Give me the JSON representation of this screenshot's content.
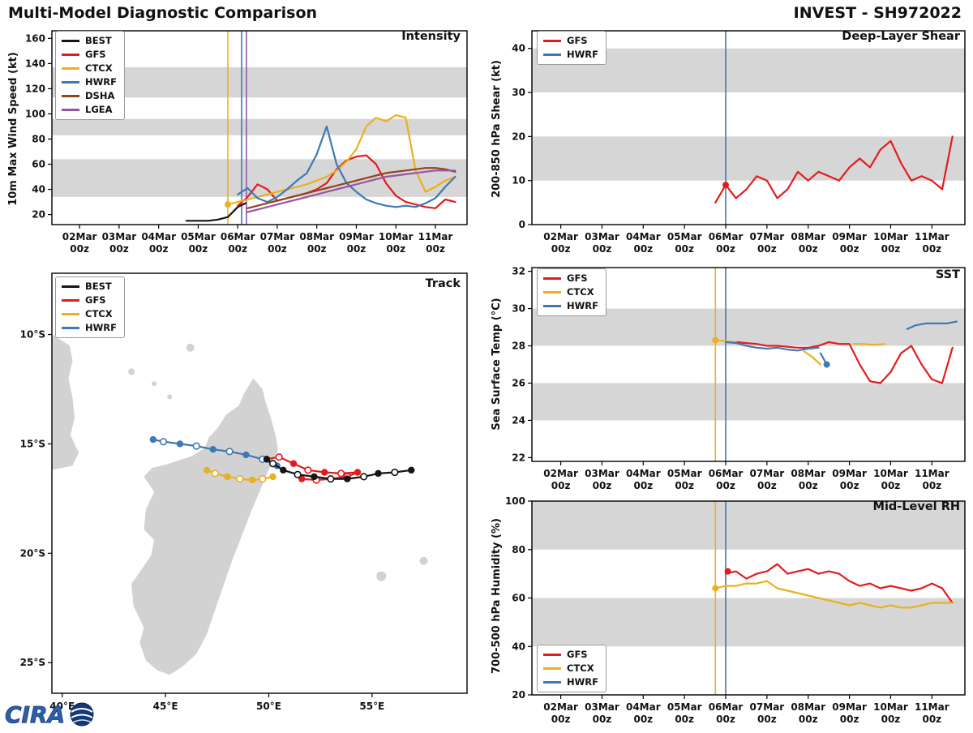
{
  "header": {
    "title": "Multi-Model Diagnostic Comparison",
    "storm_id": "INVEST - SH972022"
  },
  "logo": {
    "text": "CIRA"
  },
  "colors": {
    "BEST": "#151515",
    "GFS": "#e41b1e",
    "CTCX": "#e9b120",
    "HWRF": "#3e79b4",
    "DSHA": "#97401e",
    "LGEA": "#9557a5",
    "band": "#d6d6d6",
    "land": "#d2d2d2",
    "axis": "#000000"
  },
  "time_axis": {
    "domain": [
      1.3,
      11.8
    ],
    "tick_days": [
      2,
      3,
      4,
      5,
      6,
      7,
      8,
      9,
      10,
      11
    ],
    "tick_labels": [
      "02Mar",
      "03Mar",
      "04Mar",
      "05Mar",
      "06Mar",
      "07Mar",
      "08Mar",
      "09Mar",
      "10Mar",
      "11Mar"
    ],
    "tick_sub": "00z"
  },
  "chart_data": [
    {
      "id": "intensity",
      "type": "line",
      "title": "Intensity",
      "ylabel": "10m Max Wind Speed (kt)",
      "ylim": [
        12,
        166
      ],
      "yticks": [
        20,
        40,
        60,
        80,
        100,
        120,
        140,
        160
      ],
      "bands": [
        [
          34,
          64
        ],
        [
          83,
          96
        ],
        [
          113,
          137
        ]
      ],
      "legend": [
        "BEST",
        "GFS",
        "CTCX",
        "HWRF",
        "DSHA",
        "LGEA"
      ],
      "init_lines": [
        {
          "x": 5.75,
          "c": "CTCX"
        },
        {
          "x": 6.1,
          "c": "HWRF"
        },
        {
          "x": 6.22,
          "c": "LGEA"
        }
      ],
      "series": [
        {
          "name": "BEST",
          "x": [
            4.7,
            5.0,
            5.25,
            5.5,
            5.75,
            6.0,
            6.2
          ],
          "y": [
            15,
            15,
            15,
            16,
            18,
            26,
            29
          ]
        },
        {
          "name": "GFS",
          "x0": 6.0,
          "dx": 0.25,
          "y": [
            27,
            34,
            44,
            40,
            31,
            33,
            35,
            37,
            40,
            45,
            56,
            63,
            66,
            67,
            60,
            45,
            35,
            30,
            28,
            26,
            25,
            32,
            30
          ]
        },
        {
          "name": "CTCX",
          "x0": 5.75,
          "dx": 0.25,
          "y": [
            28,
            30,
            32,
            34,
            36,
            38,
            40,
            42,
            44,
            47,
            50,
            55,
            62,
            72,
            90,
            97,
            94,
            99,
            97,
            55,
            38,
            42,
            47,
            50
          ],
          "dots": [
            [
              5.75,
              28
            ]
          ]
        },
        {
          "name": "HWRF",
          "x0": 6.0,
          "dx": 0.25,
          "y": [
            36,
            41,
            33,
            30,
            34,
            40,
            47,
            53,
            68,
            90,
            60,
            45,
            38,
            32,
            29,
            27,
            26,
            27,
            26,
            29,
            33,
            42,
            50
          ]
        },
        {
          "name": "DSHA",
          "x0": 6.25,
          "dx": 0.25,
          "y": [
            25,
            27,
            29,
            31,
            33,
            35,
            37,
            39,
            41,
            43,
            45,
            47,
            49,
            51,
            53,
            54,
            55,
            56,
            57,
            57,
            56,
            54
          ]
        },
        {
          "name": "LGEA",
          "x0": 6.25,
          "dx": 0.25,
          "y": [
            22,
            24,
            26,
            28,
            30,
            32,
            34,
            36,
            38,
            40,
            42,
            44,
            46,
            48,
            50,
            51,
            52,
            53,
            54,
            55,
            55,
            55
          ]
        }
      ]
    },
    {
      "id": "track",
      "type": "track",
      "title": "Track",
      "legend": [
        "BEST",
        "GFS",
        "CTCX",
        "HWRF"
      ],
      "lon_domain": [
        39.5,
        59.6
      ],
      "lat_domain": [
        -26.4,
        -7.2
      ],
      "lon_ticks": [
        40,
        45,
        50,
        55
      ],
      "lat_ticks": [
        10,
        15,
        20,
        25
      ],
      "tracks": [
        {
          "name": "CTCX",
          "pts": [
            [
              50.2,
              -16.5,
              1
            ],
            [
              49.7,
              -16.6,
              0
            ],
            [
              49.2,
              -16.65,
              1
            ],
            [
              48.6,
              -16.6,
              0
            ],
            [
              48.0,
              -16.5,
              1
            ],
            [
              47.4,
              -16.35,
              0
            ],
            [
              47.0,
              -16.2,
              1
            ]
          ]
        },
        {
          "name": "GFS",
          "pts": [
            [
              49.9,
              -15.7,
              1
            ],
            [
              50.5,
              -15.6,
              0
            ],
            [
              51.2,
              -15.9,
              1
            ],
            [
              51.9,
              -16.2,
              0
            ],
            [
              52.7,
              -16.3,
              1
            ],
            [
              53.5,
              -16.35,
              0
            ],
            [
              54.3,
              -16.3,
              1
            ],
            [
              53.8,
              -16.5,
              0
            ],
            [
              53.0,
              -16.6,
              1
            ],
            [
              52.3,
              -16.65,
              0
            ],
            [
              51.6,
              -16.6,
              1
            ]
          ]
        },
        {
          "name": "HWRF",
          "pts": [
            [
              50.4,
              -16.0,
              1
            ],
            [
              49.7,
              -15.7,
              0
            ],
            [
              48.9,
              -15.5,
              1
            ],
            [
              48.1,
              -15.35,
              0
            ],
            [
              47.3,
              -15.25,
              1
            ],
            [
              46.5,
              -15.1,
              0
            ],
            [
              45.7,
              -15.0,
              1
            ],
            [
              44.9,
              -14.9,
              0
            ],
            [
              44.4,
              -14.8,
              1
            ]
          ]
        },
        {
          "name": "BEST",
          "pts": [
            [
              56.9,
              -16.2,
              1
            ],
            [
              56.1,
              -16.3,
              0
            ],
            [
              55.3,
              -16.35,
              1
            ],
            [
              54.6,
              -16.5,
              0
            ],
            [
              53.8,
              -16.6,
              1
            ],
            [
              53.0,
              -16.6,
              0
            ],
            [
              52.2,
              -16.5,
              1
            ],
            [
              51.4,
              -16.4,
              0
            ],
            [
              50.7,
              -16.2,
              1
            ],
            [
              50.2,
              -15.9,
              0
            ],
            [
              49.9,
              -15.7,
              1
            ]
          ]
        }
      ],
      "land": {
        "madagascar": [
          [
            49.25,
            -12.0
          ],
          [
            49.7,
            -12.5
          ],
          [
            49.85,
            -13.1
          ],
          [
            50.1,
            -13.8
          ],
          [
            50.35,
            -14.7
          ],
          [
            50.45,
            -15.3
          ],
          [
            50.15,
            -15.85
          ],
          [
            49.85,
            -16.5
          ],
          [
            49.55,
            -17.2
          ],
          [
            49.1,
            -18.2
          ],
          [
            48.7,
            -19.2
          ],
          [
            48.2,
            -20.4
          ],
          [
            47.8,
            -21.5
          ],
          [
            47.4,
            -22.6
          ],
          [
            47.0,
            -23.7
          ],
          [
            46.5,
            -24.6
          ],
          [
            45.8,
            -25.2
          ],
          [
            45.2,
            -25.55
          ],
          [
            44.6,
            -25.35
          ],
          [
            44.05,
            -24.9
          ],
          [
            43.75,
            -24.1
          ],
          [
            43.95,
            -23.4
          ],
          [
            43.45,
            -22.4
          ],
          [
            43.35,
            -21.4
          ],
          [
            43.8,
            -20.8
          ],
          [
            44.3,
            -20.1
          ],
          [
            44.45,
            -19.4
          ],
          [
            43.95,
            -18.9
          ],
          [
            44.05,
            -18.0
          ],
          [
            44.45,
            -17.2
          ],
          [
            43.95,
            -16.5
          ],
          [
            44.35,
            -16.1
          ],
          [
            45.0,
            -15.95
          ],
          [
            45.65,
            -15.75
          ],
          [
            46.3,
            -15.55
          ],
          [
            46.9,
            -15.2
          ],
          [
            47.1,
            -14.7
          ],
          [
            47.5,
            -14.3
          ],
          [
            47.95,
            -13.65
          ],
          [
            48.55,
            -13.25
          ],
          [
            48.8,
            -12.7
          ]
        ],
        "africa": [
          [
            39.5,
            -10.0
          ],
          [
            40.35,
            -10.5
          ],
          [
            40.5,
            -11.2
          ],
          [
            40.3,
            -12.0
          ],
          [
            40.5,
            -12.9
          ],
          [
            40.6,
            -13.8
          ],
          [
            40.4,
            -14.6
          ],
          [
            40.8,
            -15.4
          ],
          [
            40.5,
            -16.0
          ],
          [
            39.5,
            -16.2
          ]
        ],
        "islands": [
          [
            43.35,
            -11.7,
            4
          ],
          [
            44.45,
            -12.25,
            3
          ],
          [
            45.2,
            -12.85,
            3
          ],
          [
            46.2,
            -10.6,
            5
          ],
          [
            55.45,
            -21.05,
            6
          ],
          [
            57.5,
            -20.35,
            5
          ]
        ]
      }
    },
    {
      "id": "shear",
      "type": "line",
      "title": "Deep-Layer Shear",
      "ylabel": "200-850 hPa Shear (kt)",
      "ylim": [
        0,
        44
      ],
      "yticks": [
        0,
        10,
        20,
        30,
        40
      ],
      "bands": [
        [
          10,
          20
        ],
        [
          30,
          40
        ]
      ],
      "legend": [
        "GFS",
        "HWRF"
      ],
      "init_lines": [
        {
          "x": 6.0,
          "c": "HWRF"
        }
      ],
      "series": [
        {
          "name": "GFS",
          "x0": 5.75,
          "dx": 0.25,
          "y": [
            5,
            9,
            6,
            8,
            11,
            10,
            6,
            8,
            12,
            10,
            12,
            11,
            10,
            13,
            15,
            13,
            17,
            19,
            14,
            10,
            11,
            10,
            8,
            20
          ],
          "dots": [
            [
              6.0,
              9
            ]
          ]
        },
        {
          "name": "HWRF",
          "y": []
        }
      ]
    },
    {
      "id": "sst",
      "type": "line",
      "title": "SST",
      "ylabel": "Sea Surface Temp (°C)",
      "ylim": [
        21.8,
        32.2
      ],
      "yticks": [
        22,
        24,
        26,
        28,
        30,
        32
      ],
      "bands": [
        [
          24,
          26
        ],
        [
          28,
          30
        ]
      ],
      "legend": [
        "GFS",
        "CTCX",
        "HWRF"
      ],
      "init_lines": [
        {
          "x": 5.75,
          "c": "CTCX"
        },
        {
          "x": 6.0,
          "c": "HWRF"
        }
      ],
      "series": [
        {
          "name": "GFS",
          "x0": 6.0,
          "dx": 0.25,
          "y": [
            28.2,
            28.2,
            28.15,
            28.1,
            28.0,
            28.0,
            27.95,
            27.9,
            27.9,
            28.0,
            28.2,
            28.1,
            28.1,
            27.0,
            26.1,
            26.0,
            26.6,
            27.6,
            28.0,
            27.0,
            26.2,
            26.0,
            27.9
          ]
        },
        {
          "name": "CTCX",
          "segs": [
            {
              "x": [
                5.75,
                6.0,
                6.25
              ],
              "y": [
                28.3,
                28.25,
                28.2
              ]
            },
            {
              "x": [
                7.9,
                8.1,
                8.3
              ],
              "y": [
                27.7,
                27.4,
                27.0
              ]
            },
            {
              "x": [
                9.1,
                9.35,
                9.6,
                9.85
              ],
              "y": [
                28.1,
                28.1,
                28.05,
                28.1
              ]
            }
          ],
          "dots": [
            [
              5.75,
              28.3
            ]
          ]
        },
        {
          "name": "HWRF",
          "segs": [
            {
              "x": [
                6.0,
                6.25,
                6.5,
                6.75,
                7.0,
                7.25,
                7.5,
                7.75,
                8.0,
                8.25
              ],
              "y": [
                28.2,
                28.15,
                28.0,
                27.9,
                27.85,
                27.9,
                27.8,
                27.75,
                27.85,
                27.9
              ]
            },
            {
              "x": [
                8.3,
                8.45
              ],
              "y": [
                27.6,
                27.0
              ]
            },
            {
              "x": [
                10.4,
                10.6,
                10.85,
                11.1,
                11.35,
                11.6
              ],
              "y": [
                28.9,
                29.1,
                29.2,
                29.2,
                29.2,
                29.3
              ]
            }
          ],
          "dots": [
            [
              8.45,
              27.0
            ]
          ]
        }
      ]
    },
    {
      "id": "rh",
      "type": "line",
      "title": "Mid-Level RH",
      "ylabel": "700-500 hPa Humidity (%)",
      "ylim": [
        20,
        100
      ],
      "yticks": [
        20,
        40,
        60,
        80,
        100
      ],
      "bands": [
        [
          40,
          60
        ],
        [
          80,
          100
        ]
      ],
      "legend": [
        "GFS",
        "CTCX",
        "HWRF"
      ],
      "init_lines": [
        {
          "x": 5.75,
          "c": "CTCX"
        },
        {
          "x": 6.0,
          "c": "HWRF"
        }
      ],
      "series": [
        {
          "name": "GFS",
          "x0": 6.0,
          "dx": 0.25,
          "y": [
            70,
            71,
            68,
            70,
            71,
            74,
            70,
            71,
            72,
            70,
            71,
            70,
            67,
            65,
            66,
            64,
            65,
            64,
            63,
            64,
            66,
            64,
            58
          ],
          "dots": [
            [
              6.05,
              71
            ]
          ]
        },
        {
          "name": "CTCX",
          "x0": 5.75,
          "dx": 0.25,
          "y": [
            64,
            65,
            65,
            66,
            66,
            67,
            64,
            63,
            62,
            61,
            60,
            59,
            58,
            57,
            58,
            57,
            56,
            57,
            56,
            56,
            57,
            58,
            58,
            58
          ],
          "dots": [
            [
              5.75,
              64
            ]
          ]
        },
        {
          "name": "HWRF",
          "y": []
        }
      ]
    }
  ]
}
